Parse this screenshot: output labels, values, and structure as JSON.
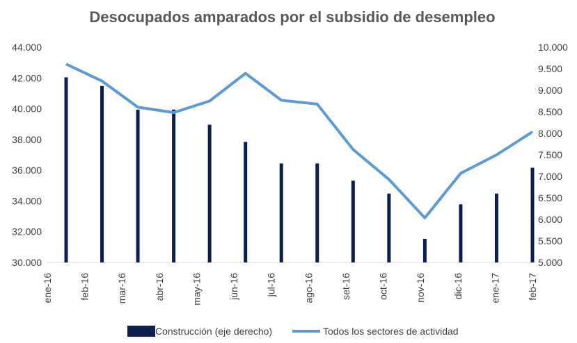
{
  "chart_data": {
    "type": "bar_line",
    "title": "Desocupados amparados por el subsidio de desempleo",
    "categories": [
      "ene-16",
      "feb-16",
      "mar-16",
      "abr-16",
      "may-16",
      "jun-16",
      "jul-16",
      "ago-16",
      "set-16",
      "oct-16",
      "nov-16",
      "dic-16",
      "ene-17",
      "feb-17"
    ],
    "series": [
      {
        "name": "Construcción (eje derecho)",
        "type": "bar",
        "axis": "y2",
        "color": "#0d1f4f",
        "values": [
          9300,
          9100,
          8550,
          8550,
          8200,
          7800,
          7300,
          7300,
          6900,
          6600,
          5550,
          6350,
          6600,
          7200
        ]
      },
      {
        "name": "Todos los sectores de actividad",
        "type": "line",
        "axis": "y",
        "color": "#5b9bd5",
        "values": [
          42900,
          41800,
          40100,
          39750,
          40500,
          42300,
          40550,
          40300,
          37350,
          35400,
          32900,
          35800,
          37000,
          38500
        ]
      }
    ],
    "ylim": [
      30000,
      44000
    ],
    "yticks": [
      {
        "value": 30000,
        "label": "30.000"
      },
      {
        "value": 32000,
        "label": "32.000"
      },
      {
        "value": 34000,
        "label": "34.000"
      },
      {
        "value": 36000,
        "label": "36.000"
      },
      {
        "value": 38000,
        "label": "38.000"
      },
      {
        "value": 40000,
        "label": "40.000"
      },
      {
        "value": 42000,
        "label": "42.000"
      },
      {
        "value": 44000,
        "label": "44.000"
      }
    ],
    "y2lim": [
      5000,
      10000
    ],
    "y2ticks": [
      {
        "value": 5000,
        "label": "5.000"
      },
      {
        "value": 5500,
        "label": "5.500"
      },
      {
        "value": 6000,
        "label": "6.000"
      },
      {
        "value": 6500,
        "label": "6.500"
      },
      {
        "value": 7000,
        "label": "7.000"
      },
      {
        "value": 7500,
        "label": "7.500"
      },
      {
        "value": 8000,
        "label": "8.000"
      },
      {
        "value": 8500,
        "label": "8.500"
      },
      {
        "value": 9000,
        "label": "9.000"
      },
      {
        "value": 9500,
        "label": "9.500"
      },
      {
        "value": 10000,
        "label": "10.000"
      }
    ],
    "grid": false
  }
}
